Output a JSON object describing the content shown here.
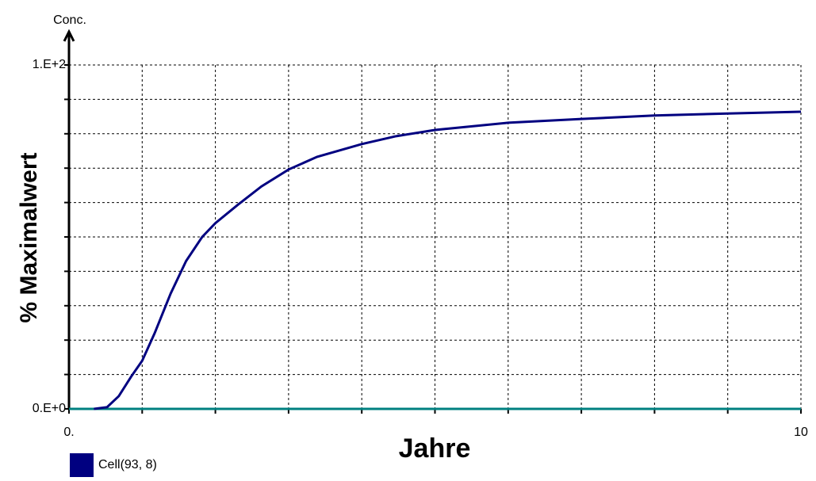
{
  "chart_data": {
    "type": "line",
    "axis_title": "Conc.",
    "ylabel": "% Maximalwert",
    "xlabel": "Jahre",
    "x": [
      0.34,
      0.52,
      0.68,
      0.85,
      1.0,
      1.17,
      1.39,
      1.6,
      1.82,
      2.0,
      2.31,
      2.63,
      3.0,
      3.39,
      4.0,
      4.47,
      5.0,
      6.0,
      7.0,
      8.0,
      9.0,
      10.0
    ],
    "series": [
      {
        "name": "Cell(93, 8)",
        "color": "#000080",
        "values": [
          0,
          0.5,
          3.7,
          9.4,
          14,
          22,
          33.6,
          43,
          50,
          54,
          59.4,
          64.7,
          69.6,
          73.3,
          77,
          79.3,
          81.1,
          83.2,
          84.3,
          85.3,
          85.9,
          86.4
        ]
      }
    ],
    "xlim": [
      0,
      10
    ],
    "ylim": [
      0,
      100
    ],
    "xticks": [
      {
        "value": 0,
        "label": "0."
      },
      10
    ],
    "yticks": [
      {
        "value": 0,
        "label": "0.E+0"
      },
      {
        "value": 100,
        "label": "1.E+2"
      }
    ],
    "xgrid": [
      1,
      2,
      3,
      4,
      5,
      6,
      7,
      8,
      9,
      10
    ],
    "ygrid": [
      10,
      20,
      30,
      40,
      50,
      60,
      70,
      80,
      90,
      100
    ],
    "grid": true,
    "axis_color": "#008080",
    "legend": "bottom-left"
  }
}
